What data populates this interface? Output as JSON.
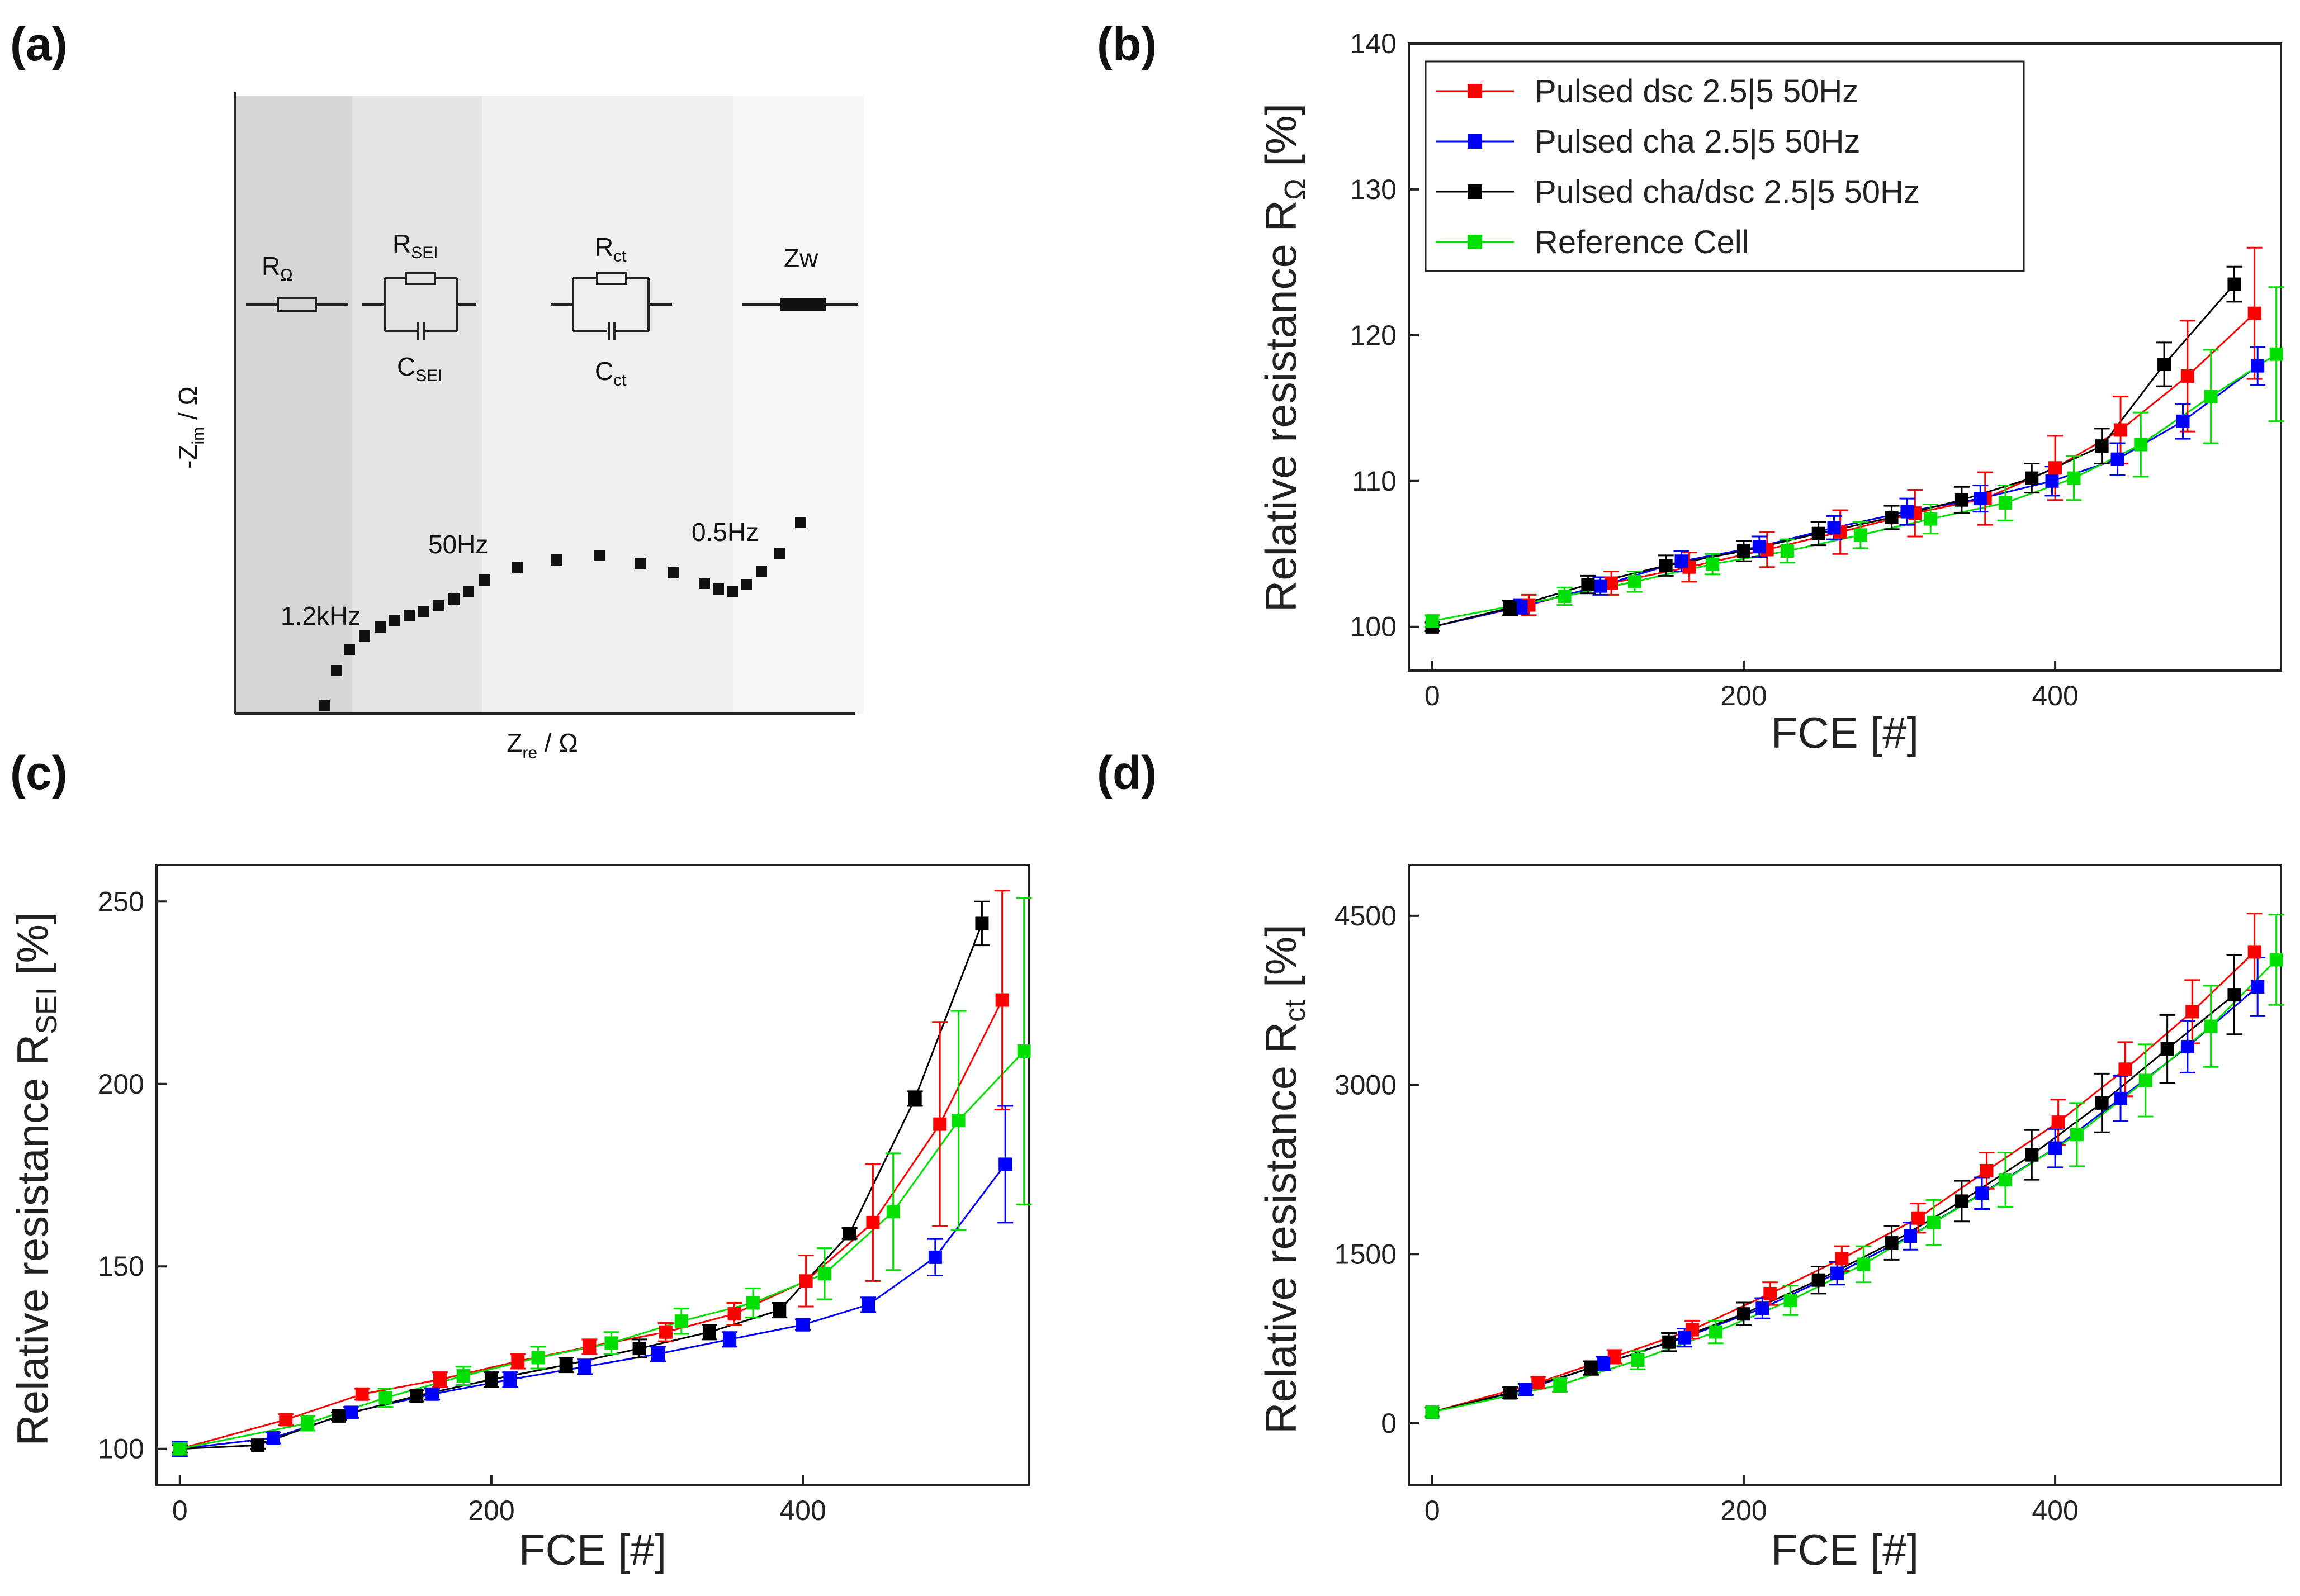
{
  "panel_labels": {
    "a": "(a)",
    "b": "(b)",
    "c": "(c)",
    "d": "(d)"
  },
  "legend": [
    {
      "label": "Pulsed dsc 2.5|5 50Hz",
      "color": "#ff0000"
    },
    {
      "label": "Pulsed cha 2.5|5 50Hz",
      "color": "#0000ff"
    },
    {
      "label": "Pulsed cha/dsc 2.5|5 50Hz",
      "color": "#000000"
    },
    {
      "label": "Reference Cell",
      "color": "#00e000"
    }
  ],
  "nyquist": {
    "ylabel_main": "-Z",
    "ylabel_sub": "im",
    "ylabel_unit": " / Ω",
    "xlabel_main": "Z",
    "xlabel_sub": "re",
    "xlabel_unit": " / Ω",
    "elements": [
      {
        "main": "R",
        "sub": "Ω"
      },
      {
        "main": "R",
        "sub": "SEI"
      },
      {
        "main": "C",
        "sub": "SEI"
      },
      {
        "main": "R",
        "sub": "ct"
      },
      {
        "main": "C",
        "sub": "ct"
      },
      {
        "main": "Zw",
        "sub": ""
      }
    ],
    "annotations": {
      "f1": "1.2kHz",
      "f2": "50Hz",
      "f3": "0.5Hz"
    },
    "region_colors": [
      "#d6d6d6",
      "#e4e4e4",
      "#efefef",
      "#f6f6f6"
    ]
  },
  "chart_data": [
    {
      "type": "scatter",
      "panel": "(b)",
      "title": "",
      "xlabel": "FCE [#]",
      "ylabel_main": "Relative resistance R",
      "ylabel_sub": "Ω",
      "ylabel_unit": " [%]",
      "xlim": [
        -15,
        545
      ],
      "ylim": [
        97,
        140
      ],
      "xticks": [
        0,
        200,
        400
      ],
      "yticks": [
        100,
        110,
        120,
        130,
        140
      ],
      "legend_position": "top-left",
      "series": [
        {
          "name": "Pulsed dsc 2.5|5 50Hz",
          "color": "#ff0000",
          "x": [
            0,
            62,
            115,
            165,
            215,
            262,
            310,
            355,
            400,
            442,
            485,
            528
          ],
          "y": [
            100.0,
            101.5,
            103.0,
            104.1,
            105.3,
            106.5,
            107.8,
            108.8,
            110.9,
            113.5,
            117.2,
            121.5
          ],
          "err": [
            0.3,
            0.7,
            0.8,
            1.0,
            1.2,
            1.5,
            1.6,
            1.8,
            2.2,
            2.3,
            3.8,
            4.5
          ]
        },
        {
          "name": "Pulsed cha 2.5|5 50Hz",
          "color": "#0000ff",
          "x": [
            0,
            57,
            108,
            160,
            210,
            258,
            305,
            352,
            398,
            440,
            482,
            530
          ],
          "y": [
            100.0,
            101.4,
            102.8,
            104.5,
            105.5,
            106.8,
            107.9,
            108.8,
            110.0,
            111.5,
            114.1,
            117.9
          ],
          "err": [
            0.3,
            0.5,
            0.6,
            0.7,
            0.7,
            0.8,
            0.9,
            0.9,
            1.0,
            1.1,
            1.2,
            1.3
          ]
        },
        {
          "name": "Pulsed cha/dsc 2.5|5 50Hz",
          "color": "#000000",
          "x": [
            0,
            50,
            100,
            150,
            200,
            248,
            295,
            340,
            385,
            430,
            470,
            515
          ],
          "y": [
            100.0,
            101.3,
            102.9,
            104.2,
            105.2,
            106.4,
            107.5,
            108.7,
            110.2,
            112.4,
            118.0,
            123.5
          ],
          "err": [
            0.3,
            0.5,
            0.6,
            0.7,
            0.7,
            0.8,
            0.8,
            0.9,
            1.0,
            1.2,
            1.5,
            1.2
          ]
        },
        {
          "name": "Reference Cell",
          "color": "#00e000",
          "x": [
            0,
            85,
            130,
            180,
            228,
            275,
            320,
            368,
            412,
            455,
            500,
            542
          ],
          "y": [
            100.4,
            102.1,
            103.1,
            104.3,
            105.2,
            106.3,
            107.4,
            108.5,
            110.2,
            112.5,
            115.8,
            118.7
          ],
          "err": [
            0.4,
            0.6,
            0.7,
            0.7,
            0.8,
            0.9,
            1.0,
            1.2,
            1.5,
            2.2,
            3.2,
            4.6
          ]
        }
      ]
    },
    {
      "type": "scatter",
      "panel": "(c)",
      "title": "",
      "xlabel": "FCE [#]",
      "ylabel_main": "Relative resistance R",
      "ylabel_sub": "SEI",
      "ylabel_unit": " [%]",
      "xlim": [
        -15,
        545
      ],
      "ylim": [
        90,
        260
      ],
      "xticks": [
        0,
        200,
        400
      ],
      "yticks": [
        100,
        150,
        200,
        250
      ],
      "series": [
        {
          "name": "Pulsed dsc 2.5|5 50Hz",
          "color": "#ff0000",
          "x": [
            0,
            68,
            117,
            167,
            217,
            263,
            312,
            356,
            402,
            445,
            488,
            528
          ],
          "y": [
            100,
            108,
            115,
            119,
            124,
            128,
            132,
            137,
            146,
            162,
            189,
            223
          ],
          "err": [
            1,
            1.5,
            1.5,
            2,
            2,
            2,
            2.5,
            3,
            7,
            16,
            28,
            30
          ]
        },
        {
          "name": "Pulsed cha 2.5|5 50Hz",
          "color": "#0000ff",
          "x": [
            0,
            60,
            110,
            162,
            212,
            260,
            307,
            353,
            400,
            442,
            485,
            530
          ],
          "y": [
            100,
            103,
            110,
            115,
            119,
            122.5,
            126,
            130,
            134,
            139.5,
            152.5,
            178
          ],
          "err": [
            2,
            1.5,
            1.5,
            1.5,
            2,
            2,
            2,
            2,
            1.5,
            2,
            5,
            16
          ]
        },
        {
          "name": "Pulsed cha/dsc 2.5|5 50Hz",
          "color": "#000000",
          "x": [
            0,
            50,
            102,
            152,
            200,
            248,
            295,
            340,
            385,
            430,
            472,
            515
          ],
          "y": [
            100,
            101,
            109,
            114.5,
            119,
            123,
            127.5,
            132,
            138,
            159,
            196,
            244
          ],
          "err": [
            1,
            1,
            1,
            1.5,
            2,
            2,
            2.5,
            2,
            2,
            1.5,
            2,
            6
          ]
        },
        {
          "name": "Reference Cell",
          "color": "#00e000",
          "x": [
            0,
            82,
            132,
            182,
            230,
            277,
            322,
            368,
            414,
            458,
            500,
            542
          ],
          "y": [
            100,
            107,
            114,
            120,
            125,
            129,
            135,
            140,
            148,
            165,
            190,
            209
          ],
          "err": [
            1.5,
            2,
            2.5,
            2.5,
            3,
            3,
            3.5,
            4,
            7,
            16,
            30,
            42
          ]
        }
      ]
    },
    {
      "type": "scatter",
      "panel": "(d)",
      "title": "",
      "xlabel": "FCE [#]",
      "ylabel_main": "Relative resistance R",
      "ylabel_sub": "ct",
      "ylabel_unit": " [%]",
      "xlim": [
        -15,
        545
      ],
      "ylim": [
        -550,
        4950
      ],
      "xticks": [
        0,
        200,
        400
      ],
      "yticks": [
        0,
        1500,
        3000,
        4500
      ],
      "series": [
        {
          "name": "Pulsed dsc 2.5|5 50Hz",
          "color": "#ff0000",
          "x": [
            0,
            68,
            117,
            167,
            217,
            263,
            312,
            356,
            402,
            445,
            488,
            528
          ],
          "y": [
            100,
            360,
            590,
            830,
            1150,
            1460,
            1820,
            2240,
            2670,
            3140,
            3650,
            4180
          ],
          "err": [
            40,
            50,
            60,
            80,
            100,
            110,
            130,
            160,
            200,
            240,
            280,
            340
          ]
        },
        {
          "name": "Pulsed cha 2.5|5 50Hz",
          "color": "#0000ff",
          "x": [
            0,
            60,
            110,
            162,
            212,
            260,
            307,
            353,
            400,
            442,
            485,
            530
          ],
          "y": [
            100,
            300,
            530,
            760,
            1020,
            1330,
            1660,
            2040,
            2440,
            2880,
            3340,
            3870
          ],
          "err": [
            40,
            50,
            60,
            80,
            90,
            100,
            120,
            140,
            170,
            200,
            230,
            260
          ]
        },
        {
          "name": "Pulsed cha/dsc 2.5|5 50Hz",
          "color": "#000000",
          "x": [
            0,
            50,
            102,
            152,
            200,
            248,
            295,
            340,
            385,
            430,
            472,
            515
          ],
          "y": [
            100,
            270,
            490,
            720,
            970,
            1270,
            1600,
            1970,
            2380,
            2840,
            3320,
            3800
          ],
          "err": [
            40,
            50,
            60,
            80,
            100,
            120,
            150,
            180,
            220,
            260,
            300,
            350
          ]
        },
        {
          "name": "Reference Cell",
          "color": "#00e000",
          "x": [
            0,
            82,
            132,
            182,
            230,
            277,
            322,
            368,
            414,
            458,
            500,
            542
          ],
          "y": [
            100,
            340,
            560,
            810,
            1090,
            1410,
            1780,
            2160,
            2560,
            3040,
            3520,
            4110
          ],
          "err": [
            40,
            60,
            80,
            100,
            130,
            160,
            200,
            240,
            280,
            320,
            360,
            400
          ]
        }
      ]
    }
  ]
}
